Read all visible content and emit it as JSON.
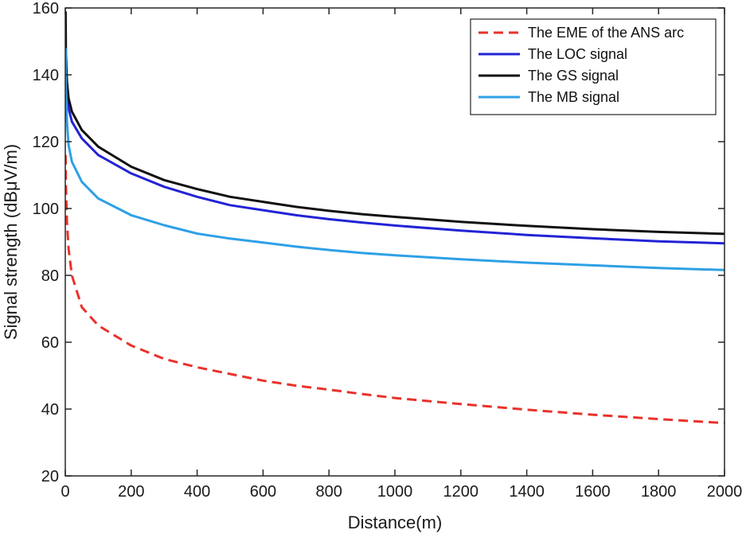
{
  "chart_data": {
    "type": "line",
    "title": "",
    "xlabel": "Distance(m)",
    "ylabel": "Signal strength (dBμV/m)",
    "xlim": [
      0,
      2000
    ],
    "ylim": [
      20,
      160
    ],
    "x_ticks": [
      0,
      200,
      400,
      600,
      800,
      1000,
      1200,
      1400,
      1600,
      1800,
      2000
    ],
    "y_ticks": [
      20,
      40,
      60,
      80,
      100,
      120,
      140,
      160
    ],
    "grid": false,
    "legend_position": "top-right",
    "x": [
      1,
      2,
      5,
      10,
      20,
      50,
      100,
      200,
      300,
      400,
      500,
      600,
      700,
      800,
      900,
      1000,
      1200,
      1400,
      1600,
      1800,
      2000
    ],
    "series": [
      {
        "name": "The EME of the ANS arc",
        "style": "dashed",
        "color": "#e8322b",
        "values": [
          116,
          107,
          96,
          88,
          80,
          70.5,
          65,
          59,
          55,
          52.5,
          50.5,
          48.5,
          47,
          45.8,
          44.5,
          43.3,
          41.5,
          39.8,
          38.3,
          37,
          35.8
        ]
      },
      {
        "name": "The LOC signal",
        "style": "solid",
        "color": "#2323d6",
        "values": [
          148,
          141,
          135,
          130,
          126,
          121,
          116,
          110.5,
          106.5,
          103.5,
          101,
          99.5,
          98,
          96.8,
          95.8,
          94.9,
          93.4,
          92.1,
          91.1,
          90.2,
          89.6
        ]
      },
      {
        "name": "The GS signal",
        "style": "solid",
        "color": "#111111",
        "values": [
          159,
          146,
          138,
          133,
          129,
          123.5,
          118.5,
          112.5,
          108.5,
          105.8,
          103.5,
          102,
          100.5,
          99.3,
          98.3,
          97.5,
          96,
          94.8,
          93.8,
          93,
          92.4
        ]
      },
      {
        "name": "The MB signal",
        "style": "solid",
        "color": "#2ea0e6",
        "values": [
          148,
          136,
          126,
          119,
          114,
          108,
          103,
          98,
          95,
          92.5,
          91,
          89.8,
          88.6,
          87.6,
          86.7,
          86,
          84.8,
          83.8,
          83,
          82.2,
          81.6
        ]
      }
    ]
  }
}
